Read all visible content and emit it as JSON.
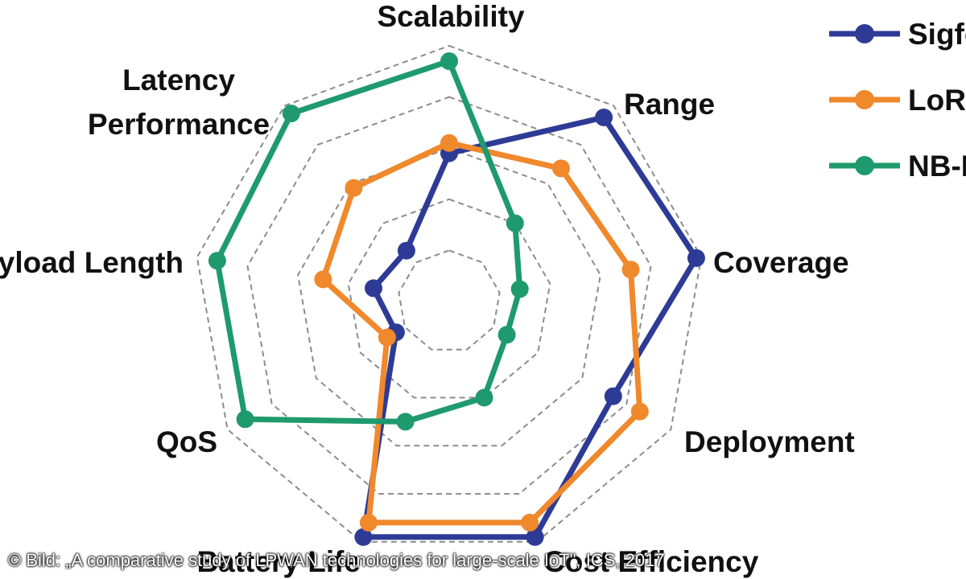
{
  "chart_data": {
    "type": "radar",
    "axes": [
      "Scalability",
      "Range",
      "Coverage",
      "Deployment",
      "Cost Efficiency",
      "Battery Life",
      "QoS",
      "Payload Length",
      "Latency Performance"
    ],
    "rmax": 5,
    "ring_levels": [
      1,
      2,
      3,
      4,
      5
    ],
    "grid": "dashed polygons",
    "legend_position": "top-right",
    "series": [
      {
        "name": "Sigfox",
        "color": "#2E3B96",
        "values": [
          2.9,
          4.7,
          4.9,
          3.7,
          4.9,
          4.9,
          1.2,
          1.5,
          1.3
        ]
      },
      {
        "name": "LoRa",
        "color": "#F0882C",
        "values": [
          3.1,
          3.4,
          3.6,
          4.3,
          4.6,
          4.6,
          1.4,
          2.5,
          2.9
        ]
      },
      {
        "name": "NB-IoT",
        "color": "#1E9A6E",
        "values": [
          4.7,
          2.0,
          1.4,
          1.3,
          2.0,
          2.5,
          4.6,
          4.6,
          4.8
        ]
      }
    ]
  },
  "credit": "© Bild: „A comparative study of LPWAN technologies for large-scale IoT\", ICS, 2017"
}
